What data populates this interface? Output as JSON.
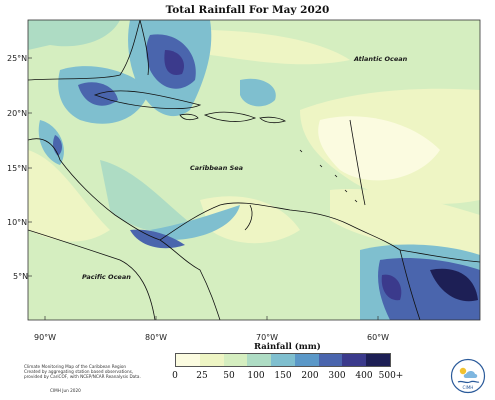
{
  "title": "Total Rainfall For May 2020",
  "axis_title": "Rainfall (mm)",
  "lat_labels": [
    "25°N",
    "20°N",
    "15°N",
    "10°N",
    "5°N"
  ],
  "lon_labels": [
    "90°W",
    "80°W",
    "70°W",
    "60°W"
  ],
  "places": {
    "atlantic": "Atlantic Ocean",
    "caribbean": "Caribbean Sea",
    "pacific": "Pacific Ocean"
  },
  "legend": {
    "ticks": [
      "0",
      "25",
      "50",
      "100",
      "150",
      "200",
      "300",
      "400",
      "500+"
    ],
    "colors": [
      "#fbfbe0",
      "#eef5c4",
      "#d5eec0",
      "#aedcc4",
      "#7fbfcf",
      "#5b98c8",
      "#4a65ad",
      "#3b3a8c",
      "#1d1f55"
    ]
  },
  "credits": [
    "Climate Monitoring Map of the Caribbean Region",
    "Created by aggregating station based observations,",
    "provided by CariCOF, with NCEP/NCAR Reanalysis Data.",
    "CIMH  Jun 2020"
  ],
  "logo_text": "CIMH"
}
